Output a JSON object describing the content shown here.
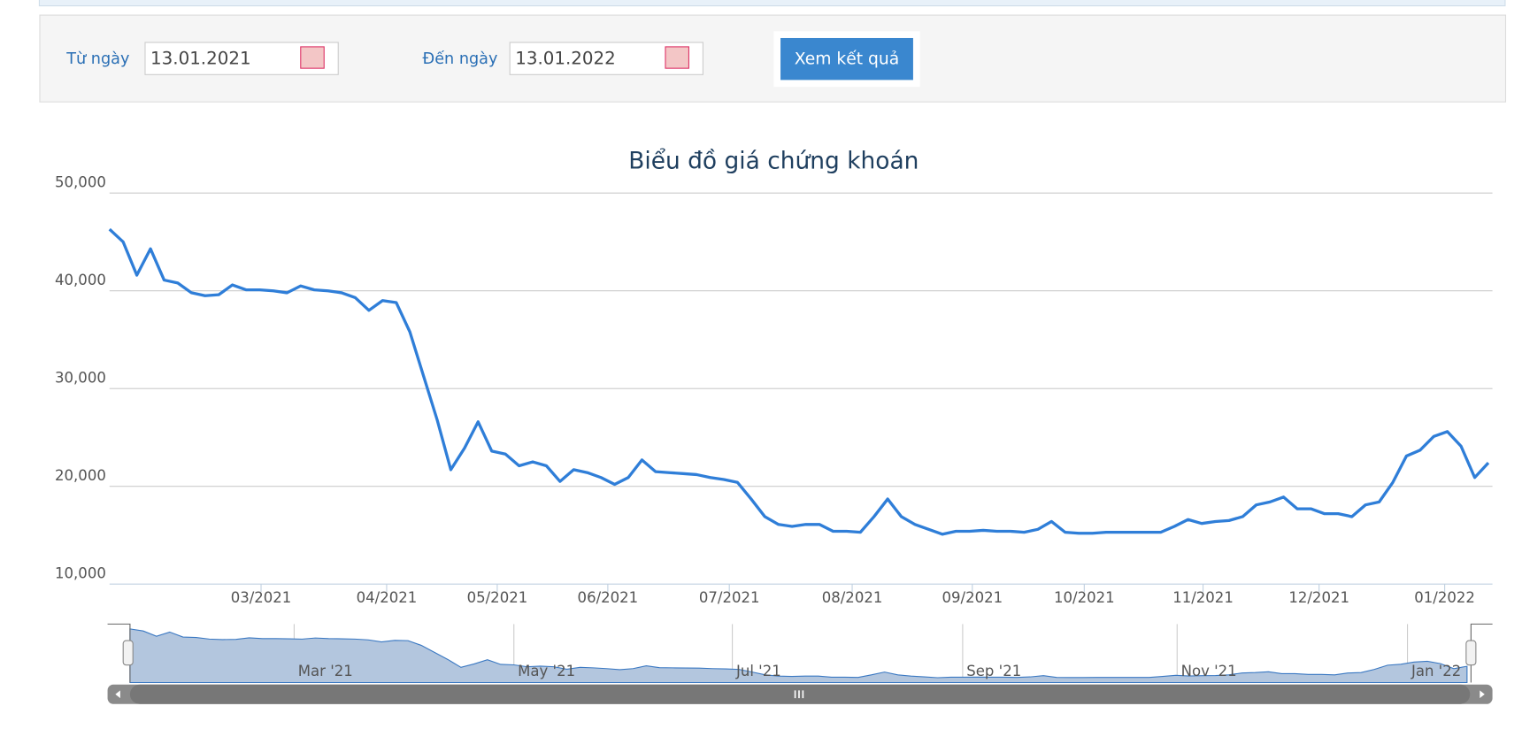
{
  "form": {
    "from_label": "Từ ngày",
    "from_value": "13.01.2021",
    "to_label": "Đến ngày",
    "to_value": "13.01.2022",
    "button": "Xem kết quả"
  },
  "chart_data": {
    "type": "line",
    "title": "Biểu đồ giá chứng khoán",
    "color": "#2f7ed8",
    "grid": true,
    "values": [
      46300,
      45000,
      41600,
      44300,
      41100,
      40800,
      39800,
      39500,
      39600,
      40600,
      40100,
      40100,
      40000,
      39800,
      40500,
      40100,
      40000,
      39800,
      39300,
      38000,
      39000,
      38800,
      35800,
      31300,
      26800,
      21700,
      23900,
      26600,
      23600,
      23300,
      22100,
      22500,
      22100,
      20500,
      21700,
      21400,
      20900,
      20200,
      20900,
      22700,
      21500,
      21400,
      21300,
      21200,
      20900,
      20700,
      20400,
      18700,
      16900,
      16100,
      15900,
      16100,
      16100,
      15400,
      15400,
      15300,
      16900,
      18700,
      16900,
      16100,
      15600,
      15100,
      15400,
      15400,
      15500,
      15400,
      15400,
      15300,
      15600,
      16400,
      15300,
      15200,
      15200,
      15300,
      15300,
      15300,
      15300,
      15300,
      15900,
      16600,
      16200,
      16400,
      16500,
      16900,
      18100,
      18400,
      18900,
      17700,
      17700,
      17200,
      17200,
      16900,
      18100,
      18400,
      20400,
      23100,
      23700,
      25100,
      25600,
      24100,
      20900,
      22400
    ],
    "xlim": [
      0,
      101.3
    ],
    "xticks": [
      {
        "value": 11.1,
        "label": "03/2021"
      },
      {
        "value": 20.3,
        "label": "04/2021"
      },
      {
        "value": 28.4,
        "label": "05/2021"
      },
      {
        "value": 36.5,
        "label": "06/2021"
      },
      {
        "value": 45.4,
        "label": "07/2021"
      },
      {
        "value": 54.4,
        "label": "08/2021"
      },
      {
        "value": 63.2,
        "label": "09/2021"
      },
      {
        "value": 71.4,
        "label": "10/2021"
      },
      {
        "value": 80.1,
        "label": "11/2021"
      },
      {
        "value": 88.6,
        "label": "12/2021"
      },
      {
        "value": 97.8,
        "label": "01/2022"
      }
    ],
    "ylim": [
      10000,
      50000
    ],
    "yticks": [
      {
        "value": 10000,
        "label": "10,000"
      },
      {
        "value": 20000,
        "label": "20,000"
      },
      {
        "value": 30000,
        "label": "30,000"
      },
      {
        "value": 40000,
        "label": "40,000"
      },
      {
        "value": 50000,
        "label": "50,000"
      }
    ],
    "navigator_ticks": [
      {
        "value": 12.4,
        "label": "Mar '21"
      },
      {
        "value": 29,
        "label": "May '21"
      },
      {
        "value": 45.5,
        "label": "Jul '21"
      },
      {
        "value": 62.9,
        "label": "Sep '21"
      },
      {
        "value": 79.1,
        "label": "Nov '21"
      },
      {
        "value": 96.5,
        "label": "Jan '22"
      }
    ]
  }
}
